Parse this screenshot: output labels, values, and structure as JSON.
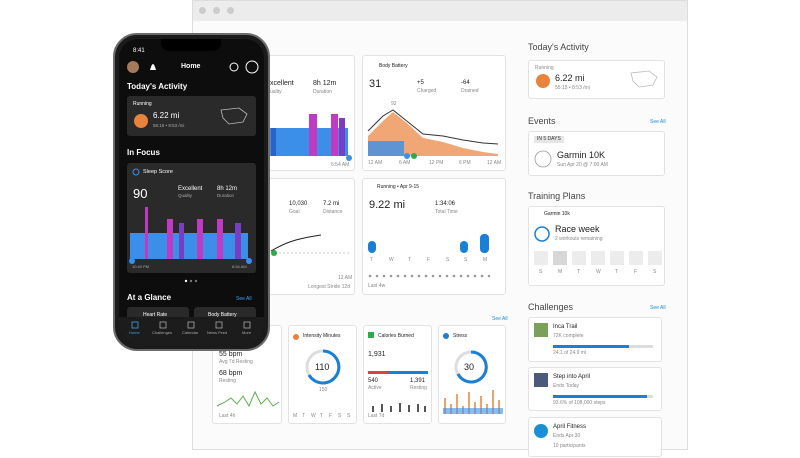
{
  "phone": {
    "time": "8:41",
    "header": "Home",
    "todays_activity": "Today's Activity",
    "activity": {
      "type": "Running",
      "distance": "6.22 mi",
      "detail": "55:15 • 8:53 /mi"
    },
    "in_focus": "In Focus",
    "sleep": {
      "title": "Sleep Score",
      "score": "90",
      "quality": "Excellent",
      "quality_label": "Quality",
      "duration": "8h 12m",
      "duration_label": "Duration",
      "start": "10:40 PM",
      "end": "6:54 AM"
    },
    "at_a_glance": "At a Glance",
    "see_all": "See All",
    "glance": [
      "Heart Rate",
      "Body Battery"
    ],
    "nav": [
      "Home",
      "Challenges",
      "Calendar",
      "News Feed",
      "More"
    ]
  },
  "dashboard": {
    "sleep": {
      "quality": "xcellent",
      "quality_label": "uality",
      "duration": "8h 12m",
      "duration_label": "Duration",
      "end": "6:54 AM"
    },
    "body_battery": {
      "title": "Body Battery",
      "value": "31",
      "charged": "+5",
      "charged_label": "Charged",
      "drained": "-64",
      "drained_label": "Drained",
      "peak": "92",
      "times": [
        "12 AM",
        "6 AM",
        "12 PM",
        "6 PM",
        "12 AM"
      ]
    },
    "steps": {
      "goal": "10,030",
      "goal_label": "Goal",
      "distance": "7.2 mi",
      "distance_label": "Distance",
      "time": "12 AM",
      "stride": "Longest Stride 12d"
    },
    "running": {
      "title": "Running • Apr 9-15",
      "distance": "9.22 mi",
      "time": "1:34:06",
      "time_label": "Total Time",
      "days": [
        "T",
        "W",
        "T",
        "F",
        "S",
        "S",
        "M"
      ],
      "range": "Last 4w"
    },
    "see_all": "See All",
    "heart_rate": {
      "avg": "55 bpm",
      "avg_label": "Avg 7d Resting",
      "resting": "68 bpm",
      "resting_label": "Resting",
      "range": "Last 4h"
    },
    "intensity": {
      "title": "Intensity Minutes",
      "value": "110",
      "goal": "150",
      "days": [
        "M",
        "T",
        "W",
        "T",
        "F",
        "S",
        "S"
      ]
    },
    "calories": {
      "title": "Calories Burned",
      "value": "1,931",
      "active": "540",
      "active_label": "Active",
      "resting": "1,391",
      "resting_label": "Resting",
      "range": "Last 7d"
    },
    "stress": {
      "title": "Stress",
      "value": "30"
    }
  },
  "sidebar": {
    "todays_activity": {
      "title": "Today's Activity",
      "type": "Running",
      "distance": "6.22 mi",
      "detail": "55:15 • 8:53 /mi"
    },
    "events": {
      "title": "Events",
      "see_all": "See All",
      "badge": "IN 5 DAYS",
      "name": "Garmin 10K",
      "date": "Sun Apr 20 @ 7:00 AM"
    },
    "training": {
      "title": "Training Plans",
      "plan": "Garmin 10k",
      "name": "Race week",
      "detail": "2 workouts remaining",
      "days": [
        "S",
        "M",
        "T",
        "W",
        "T",
        "F",
        "S"
      ]
    },
    "challenges": {
      "title": "Challenges",
      "see_all": "See All",
      "items": [
        {
          "name": "Inca Trail",
          "status": "72K complete",
          "detail": "24.1 of 24.9 mi"
        },
        {
          "name": "Step into April",
          "status": "Ends Today",
          "detail": "93.6% of 108,000 steps"
        },
        {
          "name": "April Fitness",
          "status": "Ends Apr 30",
          "detail": "10 participants"
        }
      ]
    }
  }
}
